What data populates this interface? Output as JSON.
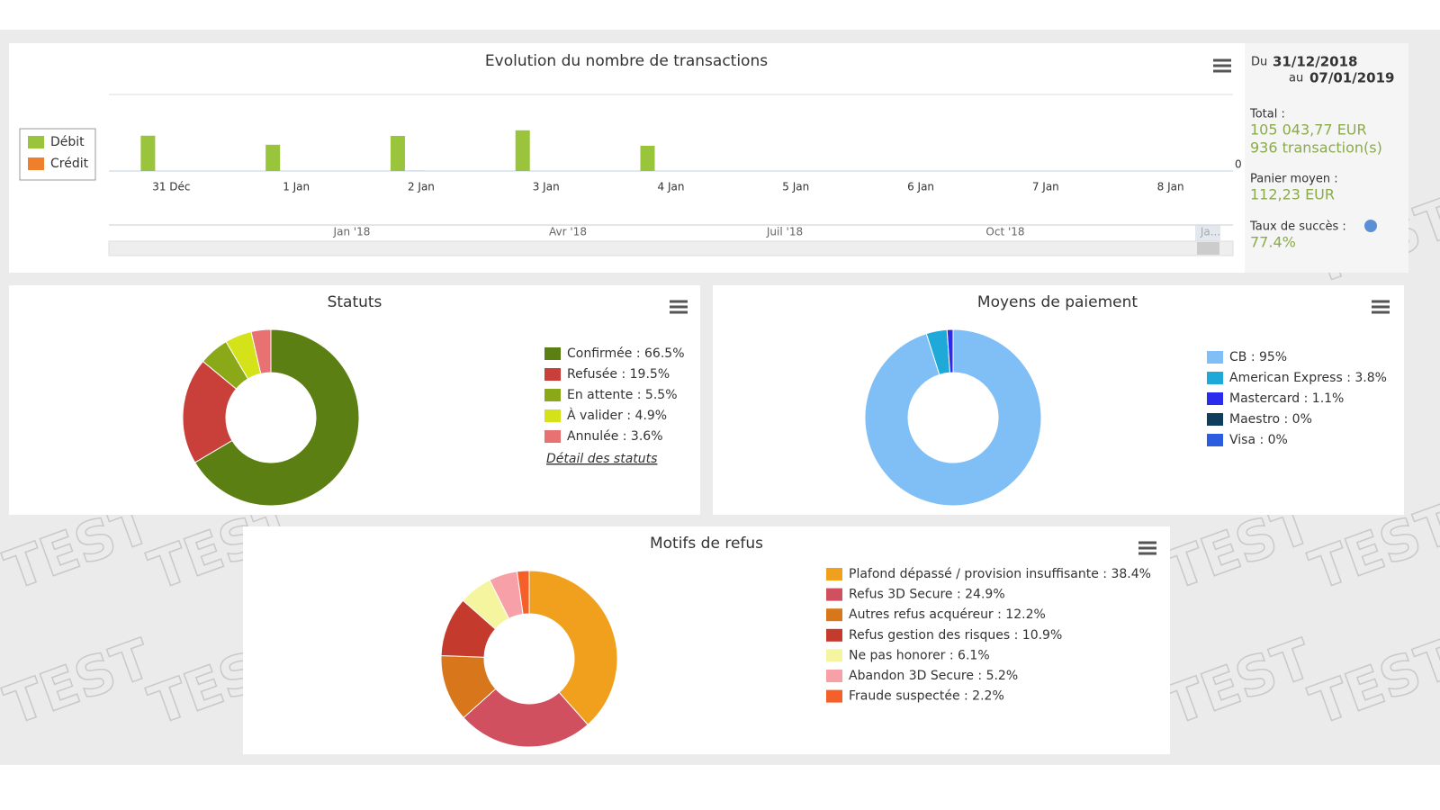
{
  "chart_data": [
    {
      "type": "bar",
      "title": "Evolution du nombre de transactions",
      "categories": [
        "31 Déc",
        "1 Jan",
        "2 Jan",
        "3 Jan",
        "4 Jan",
        "5 Jan",
        "6 Jan",
        "7 Jan",
        "8 Jan"
      ],
      "series": [
        {
          "name": "Débit",
          "color": "#9ac43c",
          "values": [
            203,
            151,
            202,
            234,
            145,
            0,
            0,
            0,
            0
          ]
        },
        {
          "name": "Crédit",
          "color": "#f07f2c",
          "values": [
            0,
            0,
            1,
            0,
            0,
            0,
            0,
            0,
            0
          ]
        }
      ],
      "ylim": [
        0,
        440
      ],
      "yticks": [
        0
      ],
      "legend": "left",
      "navigator_labels": [
        "Jan '18",
        "Avr '18",
        "Juil '18",
        "Oct '18",
        "Ja..."
      ]
    },
    {
      "type": "pie",
      "title": "Statuts",
      "categories": [
        "Confirmée : 66.5%",
        "Refusée : 19.5%",
        "En attente : 5.5%",
        "À valider : 4.9%",
        "Annulée : 3.6%"
      ],
      "values": [
        66.5,
        19.5,
        5.5,
        4.9,
        3.6
      ],
      "colors": [
        "#5c7f14",
        "#c9403a",
        "#8aa818",
        "#d4e21a",
        "#e87171"
      ],
      "link": "Détail des statuts"
    },
    {
      "type": "pie",
      "title": "Moyens de paiement",
      "categories": [
        "CB : 95%",
        "American Express : 3.8%",
        "Mastercard : 1.1%",
        "Maestro : 0%",
        "Visa : 0%"
      ],
      "values": [
        95,
        3.8,
        1.1,
        0,
        0
      ],
      "colors": [
        "#7fbff5",
        "#1ea9d9",
        "#2b2bee",
        "#0f3e5c",
        "#2c5de0"
      ]
    },
    {
      "type": "pie",
      "title": "Motifs de refus",
      "categories": [
        "Plafond dépassé / provision insuffisante : 38.4%",
        "Refus 3D Secure : 24.9%",
        "Autres refus acquéreur : 12.2%",
        "Refus gestion des risques : 10.9%",
        "Ne pas honorer : 6.1%",
        "Abandon 3D Secure : 5.2%",
        "Fraude suspectée : 2.2%"
      ],
      "values": [
        38.4,
        24.9,
        12.2,
        10.9,
        6.1,
        5.2,
        2.2
      ],
      "colors": [
        "#f0a01c",
        "#d05060",
        "#d8761c",
        "#c43a2c",
        "#f5f5a0",
        "#f7a0a8",
        "#f5602a"
      ]
    }
  ],
  "summary": {
    "from_label": "Du",
    "from": "31/12/2018",
    "to_label": "au",
    "to": "07/01/2019",
    "total_label": "Total :",
    "total_amount": "105 043,77 EUR",
    "total_count": "936 transaction(s)",
    "basket_label": "Panier moyen :",
    "basket": "112,23 EUR",
    "success_label": "Taux de succès :",
    "success": "77.4%"
  },
  "watermark": "TEST"
}
